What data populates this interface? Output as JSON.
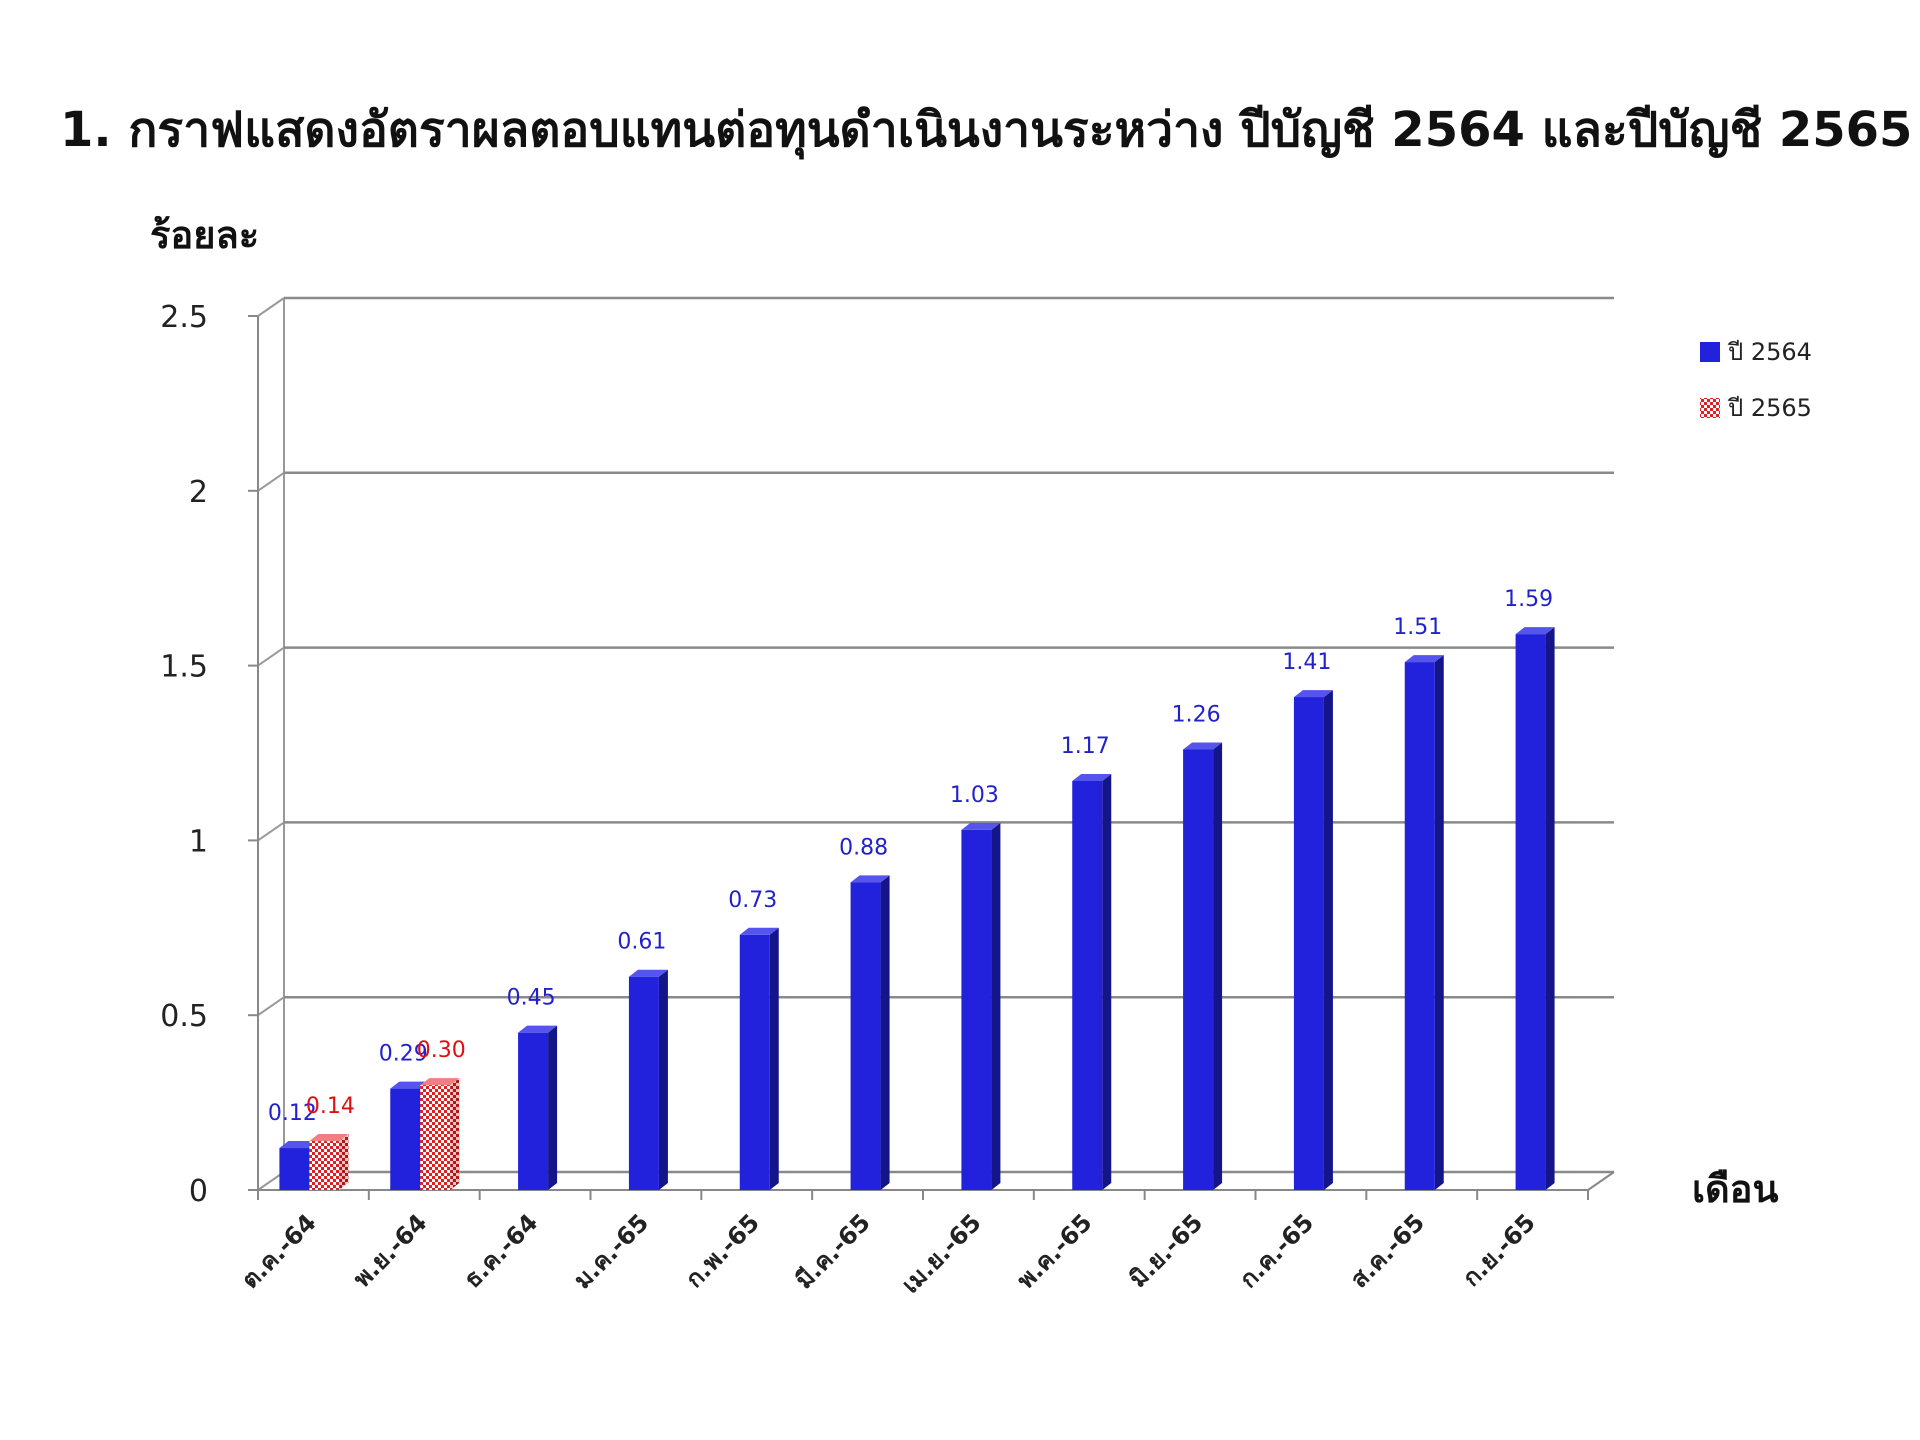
{
  "chart_data": {
    "type": "bar",
    "title": "1. กราฟแสดงอัตราผลตอบแทนต่อทุนดำเนินงานระหว่าง ปีบัญชี 2564 และปีบัญชี 2565",
    "ylabel": "ร้อยละ",
    "xlabel": "เดือน",
    "ylim": [
      0,
      2.5
    ],
    "yticks": [
      "0",
      "0.5",
      "1",
      "1.5",
      "2",
      "2.5"
    ],
    "ytick_values": [
      0,
      0.5,
      1,
      1.5,
      2,
      2.5
    ],
    "grid": true,
    "legend_position": "top-right",
    "categories": [
      "ต.ค.-64",
      "พ.ย.-64",
      "ธ.ค.-64",
      "ม.ค.-65",
      "ก.พ.-65",
      "มี.ค.-65",
      "เม.ย.-65",
      "พ.ค.-65",
      "มิ.ย.-65",
      "ก.ค.-65",
      "ส.ค.-65",
      "ก.ย.-65"
    ],
    "series": [
      {
        "name": "ปี 2564",
        "color": "#2222dd",
        "values": [
          0.12,
          0.29,
          0.45,
          0.61,
          0.73,
          0.88,
          1.03,
          1.17,
          1.26,
          1.41,
          1.51,
          1.59
        ],
        "labels": [
          "0.12",
          "0.29",
          "0.45",
          "0.61",
          "0.73",
          "0.88",
          "1.03",
          "1.17",
          "1.26",
          "1.41",
          "1.51",
          "1.59"
        ]
      },
      {
        "name": "ปี 2565",
        "color": "#e02020",
        "pattern": "checkered",
        "values": [
          0.14,
          0.3,
          null,
          null,
          null,
          null,
          null,
          null,
          null,
          null,
          null,
          null
        ],
        "labels": [
          "0.14",
          "0.30",
          null,
          null,
          null,
          null,
          null,
          null,
          null,
          null,
          null,
          null
        ]
      }
    ]
  }
}
